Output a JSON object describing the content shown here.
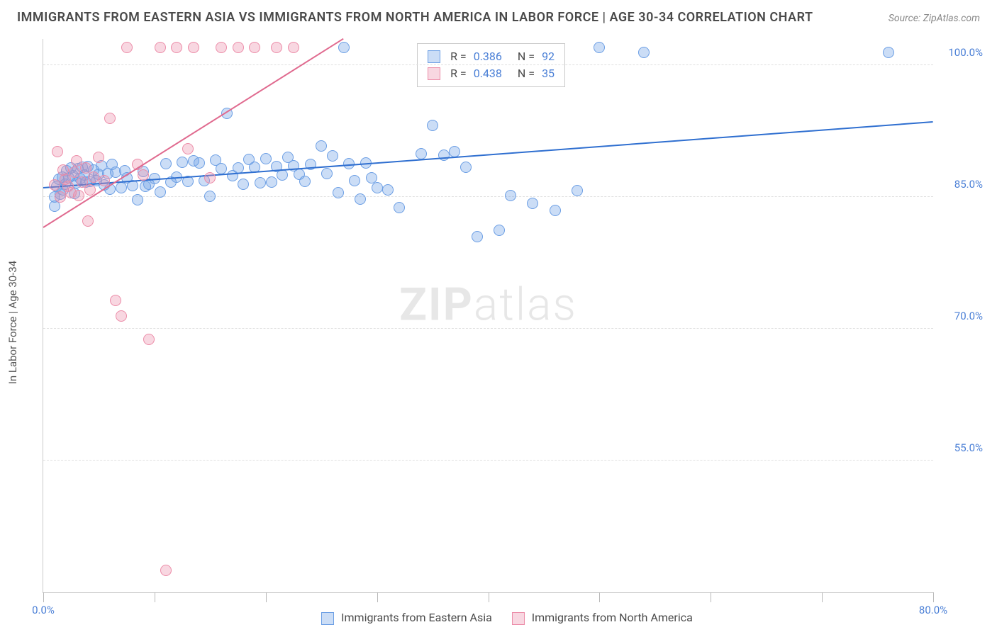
{
  "title": "IMMIGRANTS FROM EASTERN ASIA VS IMMIGRANTS FROM NORTH AMERICA IN LABOR FORCE | AGE 30-34 CORRELATION CHART",
  "source_label": "Source: ",
  "source_name": "ZipAtlas.com",
  "ylabel": "In Labor Force | Age 30-34",
  "watermark_a": "ZIP",
  "watermark_b": "atlas",
  "chart": {
    "type": "scatter",
    "xlim": [
      0,
      80
    ],
    "ylim": [
      40,
      103
    ],
    "x_ticks": [
      0,
      10,
      20,
      30,
      40,
      50,
      60,
      70,
      80
    ],
    "x_tick_labels_start": "0.0%",
    "x_tick_labels_end": "80.0%",
    "y_ticks": [
      55,
      70,
      85,
      100
    ],
    "y_tick_labels": [
      "55.0%",
      "70.0%",
      "85.0%",
      "100.0%"
    ],
    "grid_color": "#e0e0e0",
    "axis_color": "#c9c9c9",
    "background_color": "#ffffff",
    "label_color": "#4a7fd6",
    "marker_radius": 8,
    "marker_border_width": 1.5,
    "trend_line_width": 2,
    "series": [
      {
        "name": "Immigrants from Eastern Asia",
        "color_fill": "rgba(107,158,228,0.35)",
        "color_stroke": "#6b9ee4",
        "R": "0.386",
        "N": "92",
        "trend": {
          "x1": 0,
          "y1": 86,
          "x2": 80,
          "y2": 93.5,
          "color": "#2f6fd0"
        },
        "points": [
          [
            1,
            85
          ],
          [
            1,
            84
          ],
          [
            1.2,
            86.2
          ],
          [
            1.4,
            87
          ],
          [
            1.5,
            85.3
          ],
          [
            1.7,
            87.3
          ],
          [
            1.8,
            85.8
          ],
          [
            2,
            86.5
          ],
          [
            2.1,
            88
          ],
          [
            2.3,
            87.2
          ],
          [
            2.5,
            88.3
          ],
          [
            2.7,
            87.4
          ],
          [
            2.8,
            85.4
          ],
          [
            3,
            86.6
          ],
          [
            3.1,
            88.2
          ],
          [
            3.3,
            87.1
          ],
          [
            3.5,
            88.4
          ],
          [
            3.7,
            87.5
          ],
          [
            3.8,
            86.7
          ],
          [
            4,
            88.5
          ],
          [
            4.2,
            86.8
          ],
          [
            4.5,
            88.1
          ],
          [
            4.8,
            86.9
          ],
          [
            5,
            87.6
          ],
          [
            5.2,
            88.6
          ],
          [
            5.5,
            86.4
          ],
          [
            5.8,
            87.7
          ],
          [
            6,
            85.9
          ],
          [
            6.2,
            88.7
          ],
          [
            6.5,
            87.8
          ],
          [
            7,
            86.1
          ],
          [
            7.3,
            88
          ],
          [
            7.5,
            87.2
          ],
          [
            8,
            86.3
          ],
          [
            8.5,
            84.7
          ],
          [
            9,
            87.9
          ],
          [
            9.2,
            86.2
          ],
          [
            9.5,
            86.5
          ],
          [
            10,
            87.1
          ],
          [
            10.5,
            85.6
          ],
          [
            11,
            88.8
          ],
          [
            11.5,
            86.7
          ],
          [
            12,
            87.3
          ],
          [
            12.5,
            89
          ],
          [
            13,
            86.8
          ],
          [
            13.5,
            89.1
          ],
          [
            14,
            88.9
          ],
          [
            14.5,
            86.9
          ],
          [
            15,
            85.1
          ],
          [
            15.5,
            89.2
          ],
          [
            16,
            88.2
          ],
          [
            16.5,
            94.5
          ],
          [
            17,
            87.4
          ],
          [
            17.5,
            88.3
          ],
          [
            18,
            86.5
          ],
          [
            18.5,
            89.3
          ],
          [
            19,
            88.4
          ],
          [
            19.5,
            86.6
          ],
          [
            20,
            89.4
          ],
          [
            20.5,
            86.7
          ],
          [
            21,
            88.5
          ],
          [
            21.5,
            87.5
          ],
          [
            22,
            89.5
          ],
          [
            22.5,
            88.6
          ],
          [
            23,
            87.6
          ],
          [
            23.5,
            86.8
          ],
          [
            24,
            88.7
          ],
          [
            25,
            90.8
          ],
          [
            25.5,
            87.7
          ],
          [
            26,
            89.7
          ],
          [
            26.5,
            85.5
          ],
          [
            27,
            102
          ],
          [
            27.5,
            88.8
          ],
          [
            28,
            86.9
          ],
          [
            28.5,
            84.8
          ],
          [
            29,
            88.9
          ],
          [
            29.5,
            87.2
          ],
          [
            30,
            86.1
          ],
          [
            31,
            85.8
          ],
          [
            32,
            83.8
          ],
          [
            34,
            89.9
          ],
          [
            35,
            93.2
          ],
          [
            36,
            89.8
          ],
          [
            37,
            90.2
          ],
          [
            38,
            88.4
          ],
          [
            39,
            80.5
          ],
          [
            41,
            81.2
          ],
          [
            42,
            85.2
          ],
          [
            44,
            84.3
          ],
          [
            46,
            83.5
          ],
          [
            48,
            85.7
          ],
          [
            50,
            102
          ],
          [
            54,
            101.5
          ],
          [
            76,
            101.5
          ]
        ]
      },
      {
        "name": "Immigrants from North America",
        "color_fill": "rgba(236,140,168,0.35)",
        "color_stroke": "#ec8ca8",
        "R": "0.438",
        "N": "35",
        "trend": {
          "x1": 0,
          "y1": 81.5,
          "x2": 27,
          "y2": 103,
          "color": "#e06a8f"
        },
        "points": [
          [
            1,
            86.4
          ],
          [
            1.3,
            90.2
          ],
          [
            1.5,
            85
          ],
          [
            1.8,
            88.1
          ],
          [
            2,
            87
          ],
          [
            2.2,
            86.2
          ],
          [
            2.5,
            85.5
          ],
          [
            2.8,
            87.8
          ],
          [
            3,
            89.1
          ],
          [
            3.2,
            85.2
          ],
          [
            3.5,
            86.7
          ],
          [
            3.8,
            88.3
          ],
          [
            4,
            82.3
          ],
          [
            4.2,
            85.8
          ],
          [
            4.5,
            87.3
          ],
          [
            5,
            89.5
          ],
          [
            5.5,
            86.9
          ],
          [
            6,
            94
          ],
          [
            6.5,
            73.2
          ],
          [
            7,
            71.5
          ],
          [
            7.5,
            102
          ],
          [
            8.5,
            88.7
          ],
          [
            9,
            87.5
          ],
          [
            9.5,
            68.8
          ],
          [
            10.5,
            102
          ],
          [
            11,
            42.5
          ],
          [
            12,
            102
          ],
          [
            13,
            90.5
          ],
          [
            13.5,
            102
          ],
          [
            15,
            87.2
          ],
          [
            16,
            102
          ],
          [
            17.5,
            102
          ],
          [
            19,
            102
          ],
          [
            21,
            102
          ],
          [
            22.5,
            102
          ]
        ]
      }
    ]
  },
  "legend_bottom": {
    "series_a": "Immigrants from Eastern Asia",
    "series_b": "Immigrants from North America"
  }
}
